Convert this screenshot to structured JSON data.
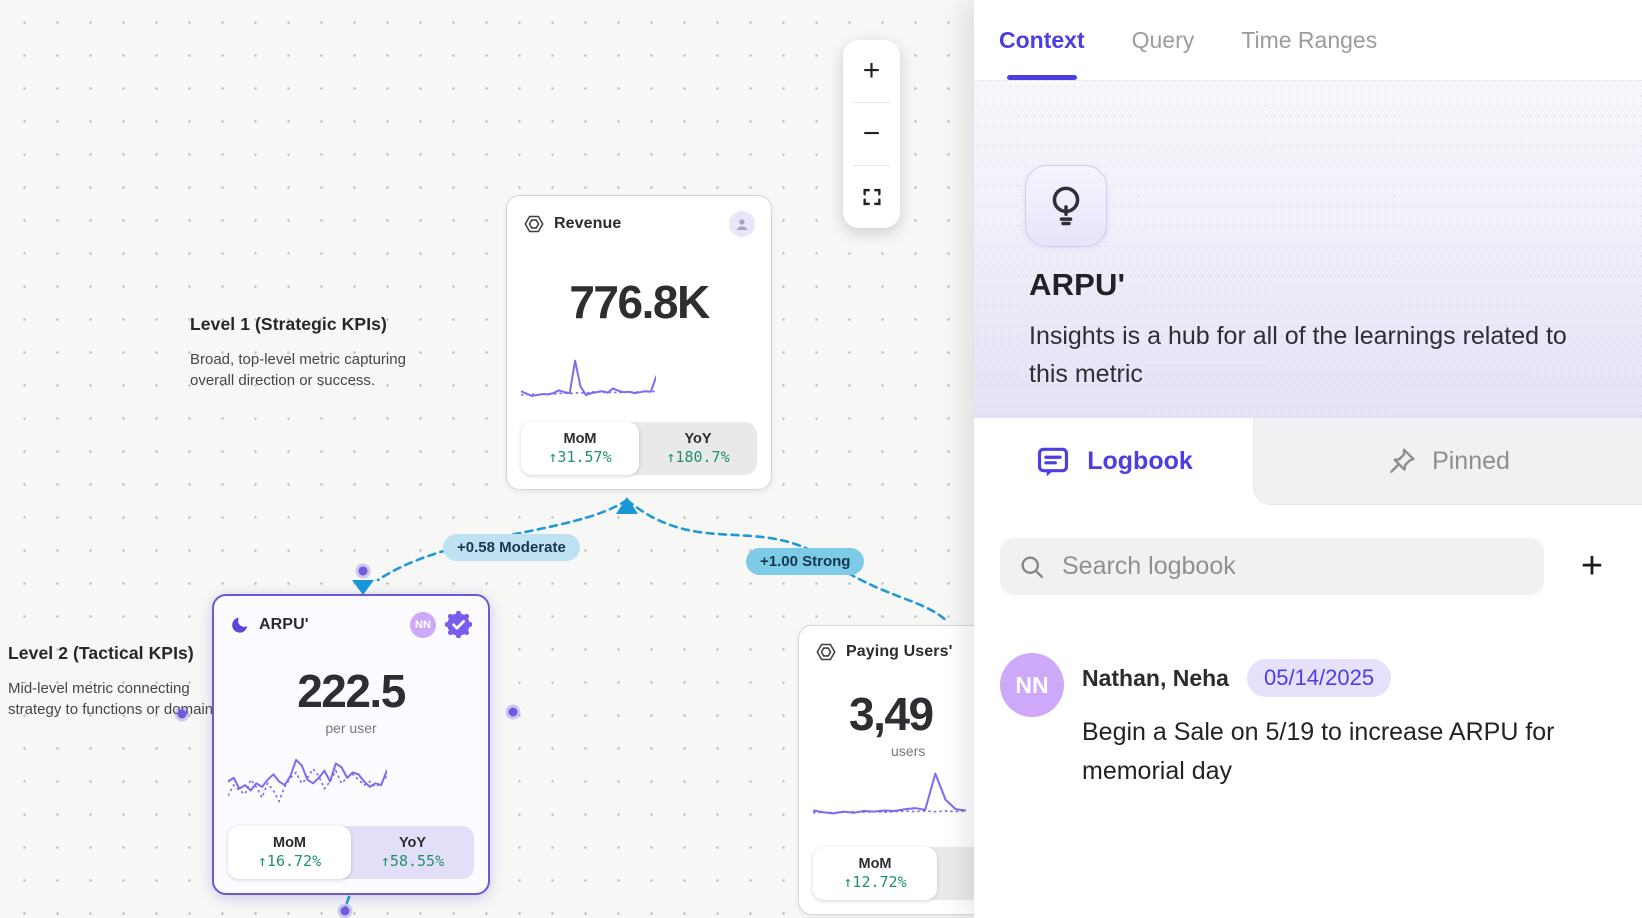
{
  "canvas": {
    "levels": [
      {
        "title": "Level 1 (Strategic KPIs)",
        "description": "Broad, top-level metric capturing overall direction or success."
      },
      {
        "title": "Level 2 (Tactical KPIs)",
        "description": "Mid-level metric connecting strategy to functions or domains."
      }
    ],
    "cards": [
      {
        "title": "Revenue",
        "value": "776.8K",
        "unit": "",
        "mom": {
          "label": "MoM",
          "value": "↑31.57%"
        },
        "yoy": {
          "label": "YoY",
          "value": "↑180.7%"
        },
        "sparkline": {
          "solid": [
            4,
            3.5,
            3,
            3.2,
            3.4,
            3.3,
            3.6,
            4.2,
            3.8,
            3.6,
            10.5,
            5,
            3.2,
            3.6,
            3.8,
            4.0,
            3.7,
            4.6,
            4.1,
            3.8,
            3.9,
            3.6,
            3.8,
            4.0,
            3.9,
            7.2
          ],
          "dotted": [
            3.2,
            3.3,
            3.4,
            3.3,
            3.4,
            3.5,
            3.4,
            3.5,
            3.6,
            3.5,
            3.6,
            3.7,
            3.6,
            3.8,
            4.0,
            3.8,
            3.7,
            3.8,
            3.7,
            3.8,
            3.9,
            3.8,
            3.9,
            4.0,
            3.9,
            4.0
          ]
        }
      },
      {
        "title": "ARPU'",
        "value": "222.5",
        "unit": "per user",
        "badge_initials": "NN",
        "verified": true,
        "mom": {
          "label": "MoM",
          "value": "↑16.72%"
        },
        "yoy": {
          "label": "YoY",
          "value": "↑58.55%"
        },
        "sparkline": {
          "solid": [
            6.2,
            6.6,
            5.4,
            5.8,
            5.2,
            6.0,
            5.6,
            6.4,
            7.0,
            6.2,
            5.8,
            6.8,
            8.6,
            8.0,
            6.4,
            6.0,
            6.6,
            7.4,
            6.2,
            8.2,
            7.8,
            6.6,
            7.2,
            7.0,
            6.2,
            5.6,
            6.0,
            5.8,
            7.4
          ],
          "dotted": [
            4.6,
            5.8,
            5.2,
            4.8,
            6.4,
            5.6,
            4.4,
            6.0,
            5.2,
            4.0,
            5.6,
            6.6,
            7.2,
            6.0,
            6.6,
            7.6,
            6.8,
            5.4,
            6.2,
            7.4,
            6.0,
            6.6,
            7.0,
            6.4,
            5.8,
            6.2,
            5.6,
            6.0,
            6.8
          ]
        }
      },
      {
        "title": "Paying Users'",
        "value": "3,49",
        "unit": "users",
        "mom": {
          "label": "MoM",
          "value": "↑12.72%"
        },
        "sparkline": {
          "solid": [
            3.6,
            3.3,
            3.1,
            3.4,
            3.2,
            3.5,
            3.4,
            3.6,
            3.5,
            3.8,
            4.0,
            3.7,
            9.8,
            5.4,
            3.8,
            3.6
          ],
          "dotted": [
            3.2,
            3.3,
            3.2,
            3.3,
            3.4,
            3.3,
            3.4,
            3.3,
            3.4,
            3.5,
            3.4,
            3.5,
            3.4,
            3.5,
            3.4,
            3.5
          ]
        }
      }
    ],
    "connections": [
      {
        "label": "+0.58 Moderate",
        "strength": "moderate"
      },
      {
        "label": "+1.00 Strong",
        "strength": "strong"
      }
    ],
    "zoom_controls": {
      "zoom_in": "+",
      "zoom_out": "−"
    }
  },
  "panel": {
    "tabs": [
      {
        "label": "Context"
      },
      {
        "label": "Query"
      },
      {
        "label": "Time Ranges"
      }
    ],
    "active_tab": "Context",
    "metric": {
      "name": "ARPU'",
      "description": "Insights is a hub for all of the learnings related to this metric"
    },
    "sections": {
      "logbook": "Logbook",
      "pinned": "Pinned"
    },
    "search": {
      "placeholder": "Search logbook"
    },
    "add_button": "+",
    "entries": [
      {
        "initials": "NN",
        "author": "Nathan, Neha",
        "date": "05/14/2025",
        "message": "Begin a Sale on 5/19 to increase ARPU for memorial day"
      }
    ]
  },
  "colors": {
    "accent_purple": "#4b3fe4",
    "card_border_purple": "#6c59d8",
    "spark_purple": "#7b6cf0",
    "delta_green": "#1f9171",
    "connector_blue": "#1e9ad6",
    "label_moderate_bg": "#bfe2f2",
    "label_strong_bg": "#7ecbe7"
  }
}
